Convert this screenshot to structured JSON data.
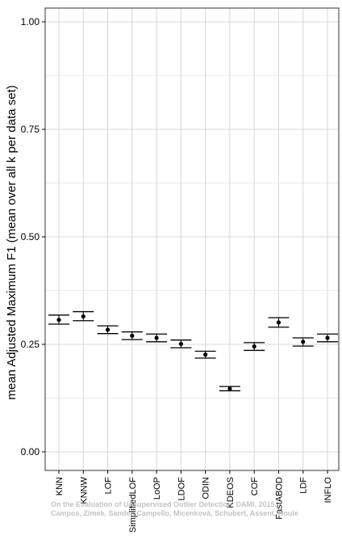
{
  "chart_data": {
    "type": "scatter",
    "ylabel": "mean Adjusted Maximum F1 (mean over all k per data set)",
    "ylim": [
      0,
      1
    ],
    "y_ticks": [
      0.0,
      0.25,
      0.5,
      0.75,
      1.0
    ],
    "y_tick_labels": [
      "0.00",
      "0.25",
      "0.50",
      "0.75",
      "1.00"
    ],
    "grid": true,
    "error_bars": true,
    "categories": [
      "KNN",
      "KNNW",
      "LOF",
      "SimplifiedLOF",
      "LoOP",
      "LDOF",
      "ODIN",
      "KDEOS",
      "COF",
      "FastABOD",
      "LDF",
      "INFLO"
    ],
    "values": [
      0.307,
      0.315,
      0.284,
      0.27,
      0.265,
      0.251,
      0.226,
      0.147,
      0.245,
      0.301,
      0.256,
      0.265
    ],
    "errors_lower": [
      0.297,
      0.305,
      0.275,
      0.261,
      0.256,
      0.242,
      0.218,
      0.142,
      0.236,
      0.29,
      0.246,
      0.256
    ],
    "errors_upper": [
      0.318,
      0.326,
      0.293,
      0.279,
      0.274,
      0.26,
      0.234,
      0.152,
      0.254,
      0.312,
      0.265,
      0.274
    ]
  },
  "watermark": {
    "line1": "On the Evaluation of Unsupervised Outlier Detection, DAMI, 2015.",
    "line2": "Campos, Zimek, Sander, Campello, Micenková, Schubert, Assent, Houle"
  },
  "colors": {
    "grid": "#d9d9d9",
    "axis": "#000000",
    "marker": "#000000"
  }
}
